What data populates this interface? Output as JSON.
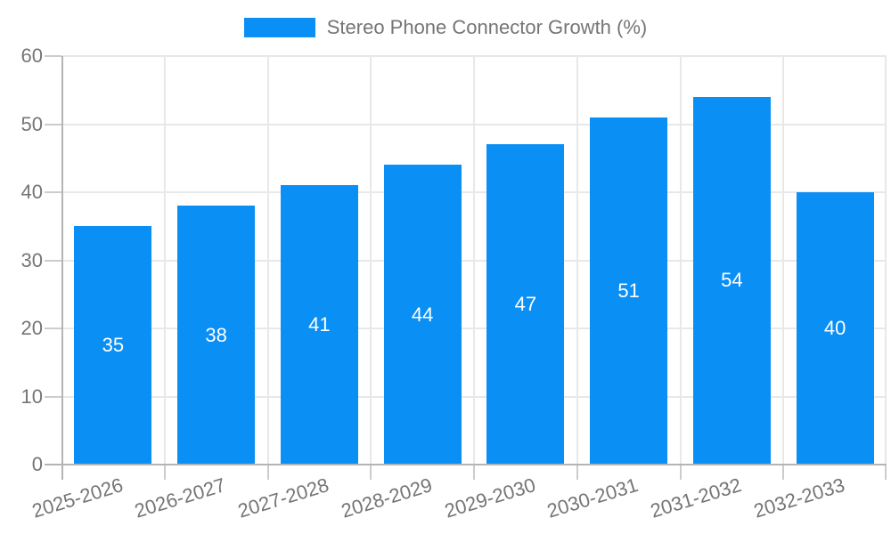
{
  "chart_data": {
    "type": "bar",
    "title": "Stereo Phone Connector Growth (%)",
    "categories": [
      "2025-2026",
      "2026-2027",
      "2027-2028",
      "2028-2029",
      "2029-2030",
      "2030-2031",
      "2031-2032",
      "2032-2033"
    ],
    "values": [
      35,
      38,
      41,
      44,
      47,
      51,
      54,
      40
    ],
    "xlabel": "",
    "ylabel": "",
    "ylim": [
      0,
      60
    ],
    "yticks": [
      0,
      10,
      20,
      30,
      40,
      50,
      60
    ],
    "grid": true,
    "legend_position": "top-center",
    "bar_color": "#0a8ff5",
    "value_label_color": "#ffffff",
    "axis_text_color": "#757575",
    "grid_color": "#e8e8e8",
    "axis_line_color": "#b4b4b4",
    "tick_color": "#cccccc"
  }
}
